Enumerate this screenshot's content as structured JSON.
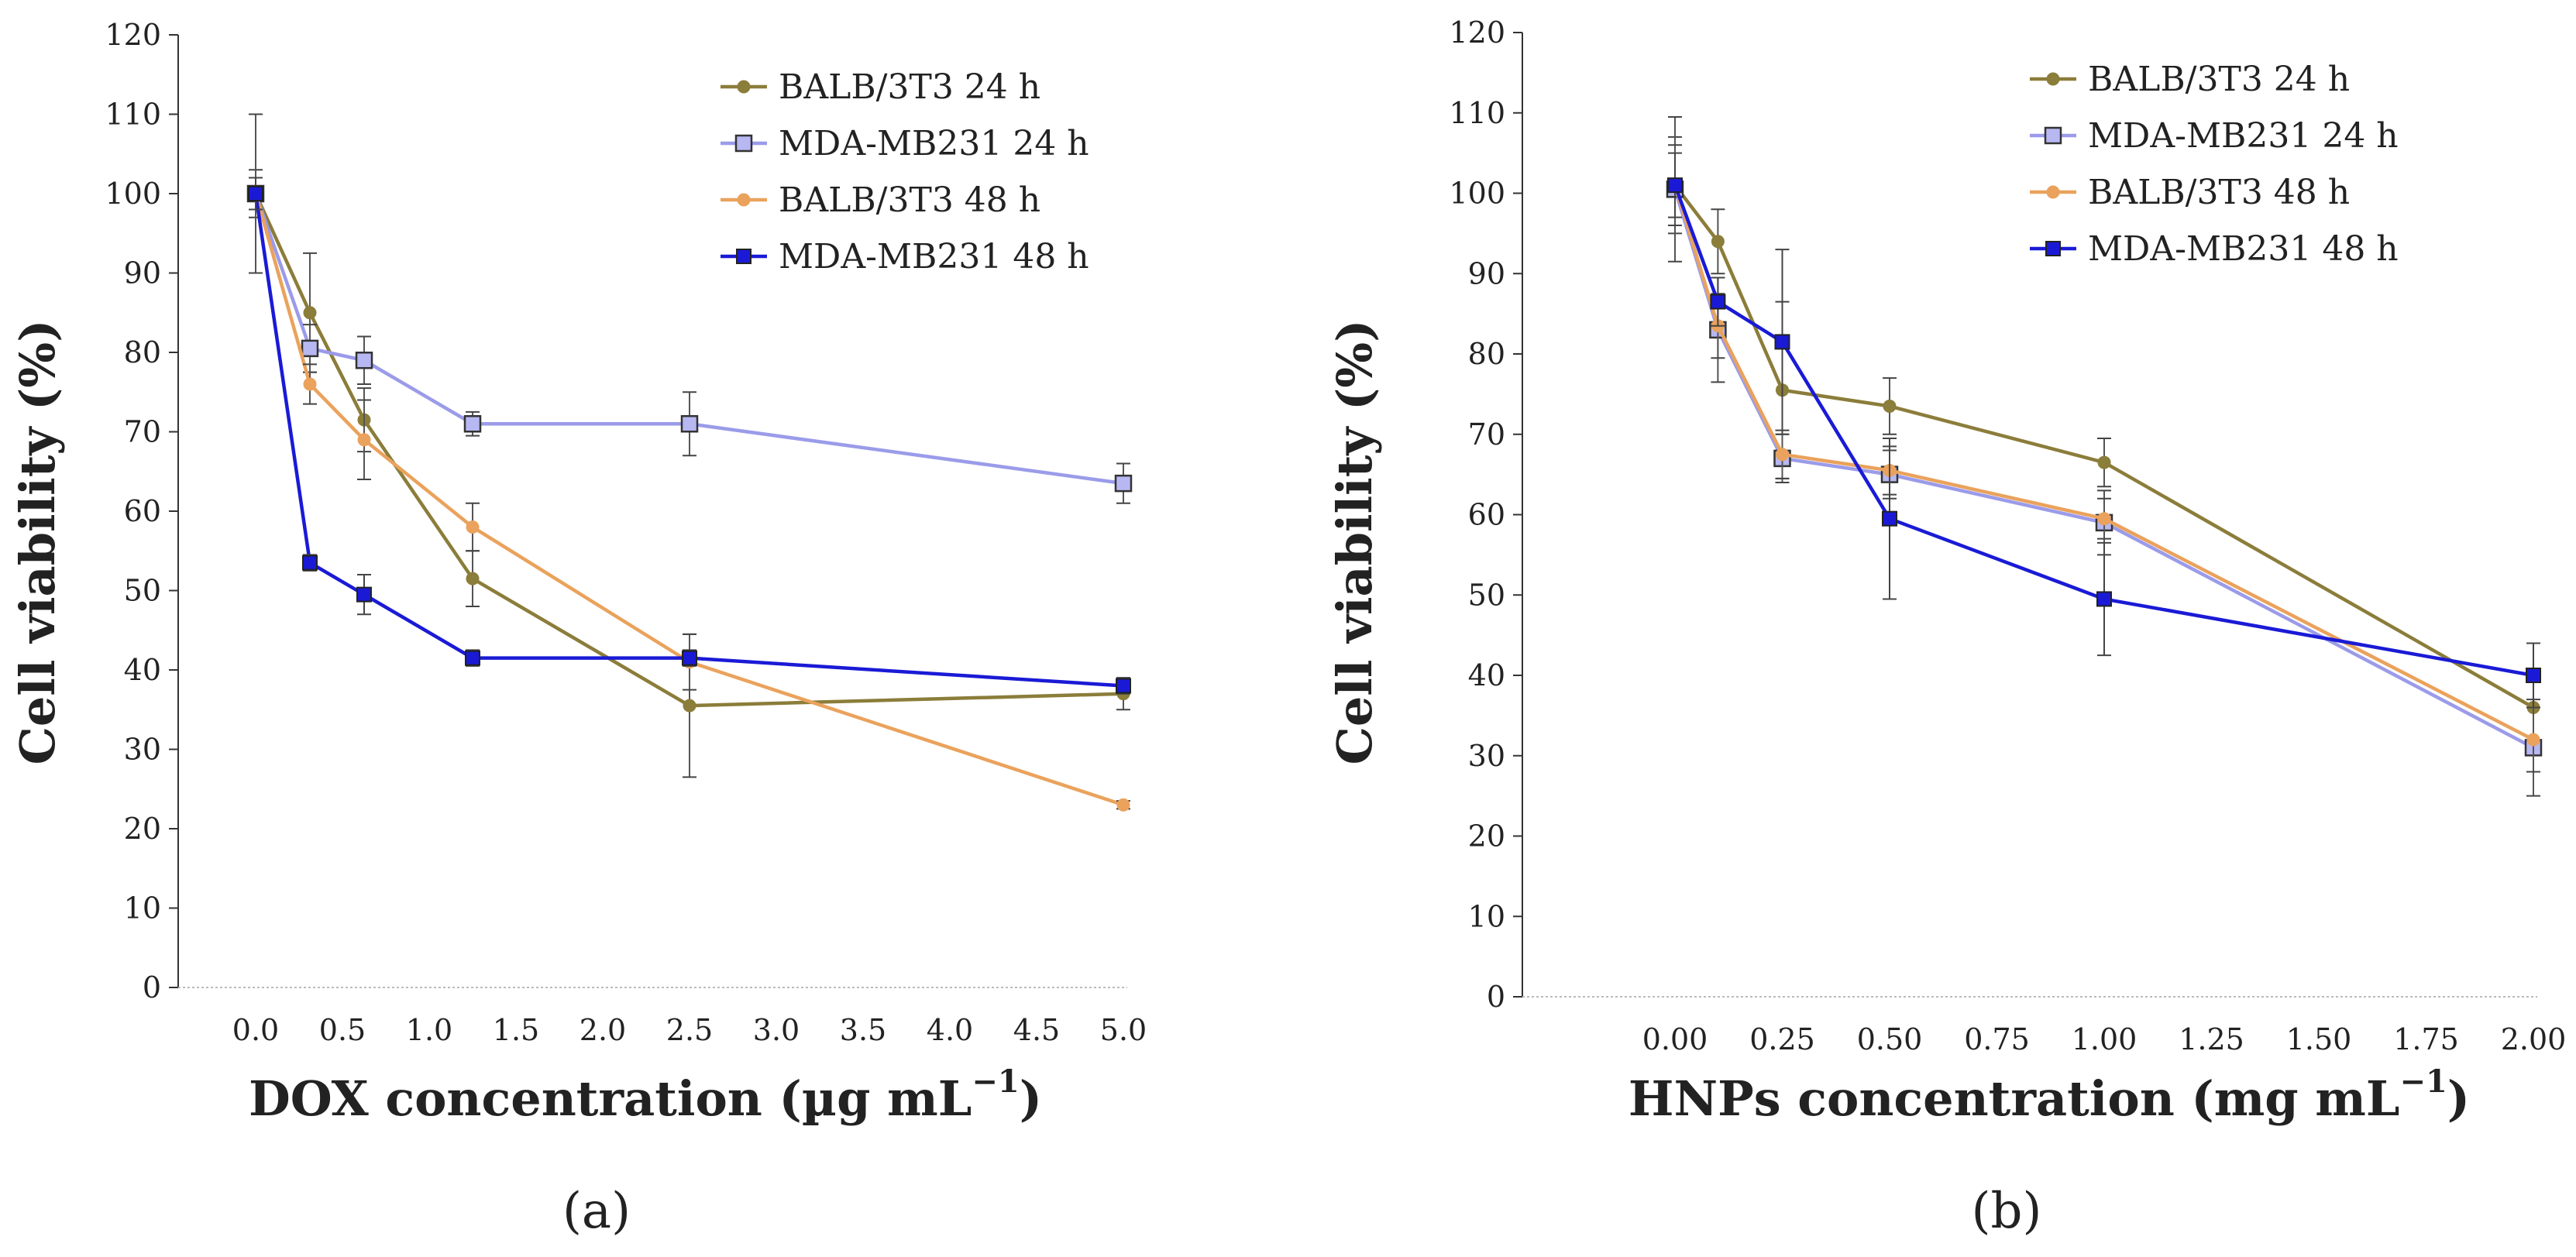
{
  "chart_data": [
    {
      "type": "line",
      "panel_label": "(a)",
      "xlabel": "DOX concentration (µg mL",
      "xlabel_superscript": "−1",
      "xlabel_suffix": ")",
      "ylabel": "Cell viability (%)",
      "ylim": [
        0,
        120
      ],
      "yticks": [
        "0",
        "10",
        "20",
        "30",
        "40",
        "50",
        "60",
        "70",
        "80",
        "90",
        "100",
        "110",
        "120"
      ],
      "xlim": [
        -0.5,
        5.1
      ],
      "xticks": [
        {
          "value": 0.0,
          "label": "0.0"
        },
        {
          "value": 0.5,
          "label": "0.5"
        },
        {
          "value": 1.0,
          "label": "1.0"
        },
        {
          "value": 1.5,
          "label": "1.5"
        },
        {
          "value": 2.0,
          "label": "2.0"
        },
        {
          "value": 2.5,
          "label": "2.5"
        },
        {
          "value": 3.0,
          "label": "3.0"
        },
        {
          "value": 3.5,
          "label": "3.5"
        },
        {
          "value": 4.0,
          "label": "4.0"
        },
        {
          "value": 4.5,
          "label": "4.5"
        },
        {
          "value": 5.0,
          "label": "5.0"
        }
      ],
      "legend_position": "top-right",
      "x": [
        0.0,
        0.3125,
        0.625,
        1.25,
        2.5,
        5.0
      ],
      "series": [
        {
          "name": "BALB/3T3 24 h",
          "color": "#8b7d3a",
          "marker": "diamond",
          "values": [
            100,
            85,
            71.5,
            51.5,
            35.5,
            37
          ],
          "errors": [
            3,
            7.5,
            4,
            3.5,
            9,
            2
          ]
        },
        {
          "name": "MDA-MB231 24 h",
          "color": "#9b9bea",
          "marker": "square-outline",
          "values": [
            100,
            80.5,
            79,
            71,
            71,
            63.5
          ],
          "errors": [
            2,
            3,
            3,
            1.5,
            4,
            2.5
          ]
        },
        {
          "name": "BALB/3T3 48 h",
          "color": "#eaa25c",
          "marker": "diamond",
          "values": [
            100,
            76,
            69,
            58,
            41,
            23
          ],
          "errors": [
            10,
            2.5,
            5,
            3,
            3.5,
            0.5
          ]
        },
        {
          "name": "MDA-MB231 48 h",
          "color": "#1a1ad6",
          "marker": "square",
          "values": [
            100,
            53.5,
            49.5,
            41.5,
            41.5,
            38
          ],
          "errors": [
            2,
            1,
            2.5,
            1,
            1,
            1
          ]
        }
      ]
    },
    {
      "type": "line",
      "panel_label": "(b)",
      "xlabel": "HNPs concentration (mg mL",
      "xlabel_superscript": "−1",
      "xlabel_suffix": ")",
      "ylabel": "Cell viability (%)",
      "ylim": [
        0,
        120
      ],
      "yticks": [
        "0",
        "10",
        "20",
        "30",
        "40",
        "50",
        "60",
        "70",
        "80",
        "90",
        "100",
        "110",
        "120"
      ],
      "xlim": [
        -0.25,
        2.0
      ],
      "xticks": [
        {
          "value": 0.0,
          "label": "0.00"
        },
        {
          "value": 0.25,
          "label": "0.25"
        },
        {
          "value": 0.5,
          "label": "0.50"
        },
        {
          "value": 0.75,
          "label": "0.75"
        },
        {
          "value": 1.0,
          "label": "1.00"
        },
        {
          "value": 1.25,
          "label": "1.25"
        },
        {
          "value": 1.5,
          "label": "1.50"
        },
        {
          "value": 1.75,
          "label": "1.75"
        },
        {
          "value": 2.0,
          "label": "2.00"
        }
      ],
      "legend_position": "top-right",
      "x": [
        0.0,
        0.1,
        0.25,
        0.5,
        1.0,
        2.0
      ],
      "series": [
        {
          "name": "BALB/3T3 24 h",
          "color": "#8b7d3a",
          "marker": "diamond",
          "values": [
            101,
            94,
            75.5,
            73.5,
            66.5,
            36
          ],
          "errors": [
            6,
            4,
            11,
            3.5,
            3,
            8
          ]
        },
        {
          "name": "MDA-MB231 24 h",
          "color": "#9b9bea",
          "marker": "square-outline",
          "values": [
            100.5,
            83,
            67,
            65,
            59,
            31
          ],
          "errors": [
            9,
            6.5,
            3,
            3,
            4,
            6
          ]
        },
        {
          "name": "BALB/3T3 48 h",
          "color": "#eaa25c",
          "marker": "diamond",
          "values": [
            101,
            83.5,
            67.5,
            65.5,
            59.5,
            32
          ],
          "errors": [
            5,
            4,
            3,
            3,
            2.5,
            4
          ]
        },
        {
          "name": "MDA-MB231 48 h",
          "color": "#1a1ad6",
          "marker": "square",
          "values": [
            101,
            86.5,
            81.5,
            59.5,
            49.5,
            40
          ],
          "errors": [
            4,
            3,
            11.5,
            10,
            7,
            4
          ]
        }
      ]
    }
  ]
}
